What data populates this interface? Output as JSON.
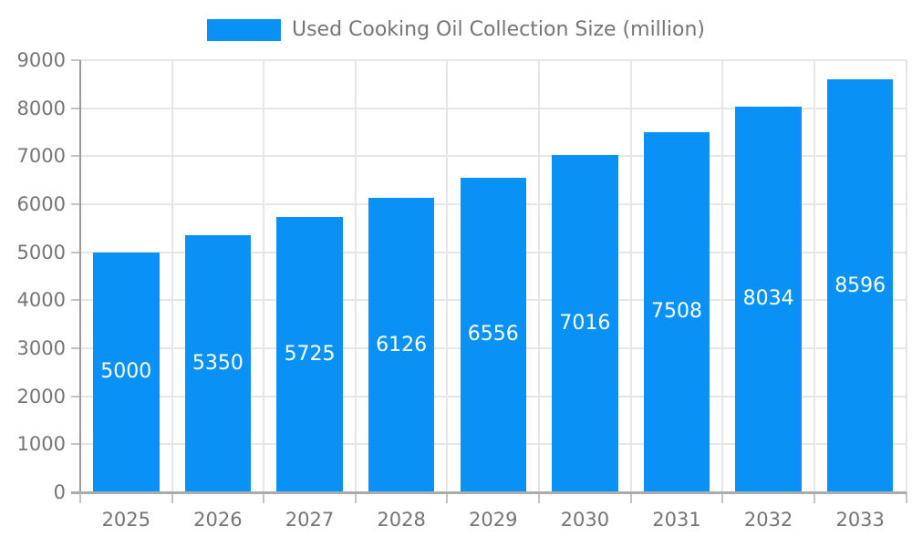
{
  "chart_data": {
    "type": "bar",
    "title": "",
    "legend": "Used Cooking Oil Collection Size (million)",
    "legend_position": "top",
    "categories": [
      "2025",
      "2026",
      "2027",
      "2028",
      "2029",
      "2030",
      "2031",
      "2032",
      "2033"
    ],
    "values": [
      5000,
      5350,
      5725,
      6126,
      6556,
      7016,
      7508,
      8034,
      8596
    ],
    "ylabel": "",
    "xlabel": "",
    "ylim": [
      0,
      9000
    ],
    "ytick_step": 1000,
    "yticks": [
      "0",
      "1000",
      "2000",
      "3000",
      "4000",
      "5000",
      "6000",
      "7000",
      "8000",
      "9000"
    ],
    "grid": true,
    "value_labels_inside_bars": true,
    "colors": {
      "bar": "#0991f6",
      "grid": "#e6e6e6",
      "yaxis_line": "#9a9a9a",
      "xaxis_line": "#ababab",
      "tick": "#c4c4c4",
      "axis_label": "#757575",
      "value_label": "#ffffff",
      "background": "#ffffff"
    }
  }
}
